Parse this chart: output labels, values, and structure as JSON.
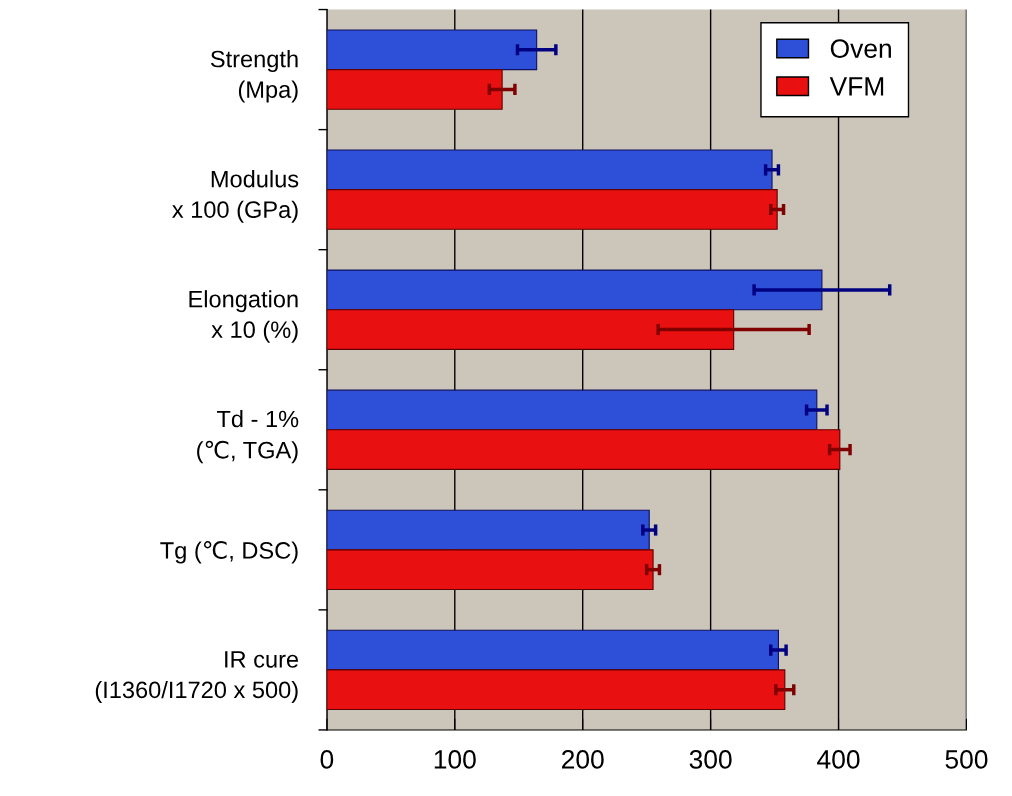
{
  "chart_data": {
    "type": "bar",
    "orientation": "horizontal",
    "categories": [
      "Strength\n(Mpa)",
      "Modulus\nx 100 (GPa)",
      "Elongation\nx 10 (%)",
      "Td - 1%\n(℃, TGA)",
      "Tg (℃, DSC)",
      "IR cure\n(I1360/I1720 x 500)"
    ],
    "series": [
      {
        "name": "Oven",
        "color": "#2e4fd8",
        "values": [
          164,
          348,
          387,
          383,
          252,
          353
        ],
        "errors": [
          15,
          5,
          53,
          8,
          5,
          6
        ]
      },
      {
        "name": "VFM",
        "color": "#e81010",
        "values": [
          137,
          352,
          318,
          401,
          255,
          358
        ],
        "errors": [
          10,
          5,
          59,
          8,
          5,
          7
        ]
      }
    ],
    "xlim": [
      0,
      500
    ],
    "xticks": [
      0,
      100,
      200,
      300,
      400,
      500
    ],
    "grid": "x",
    "legend": "top right"
  }
}
